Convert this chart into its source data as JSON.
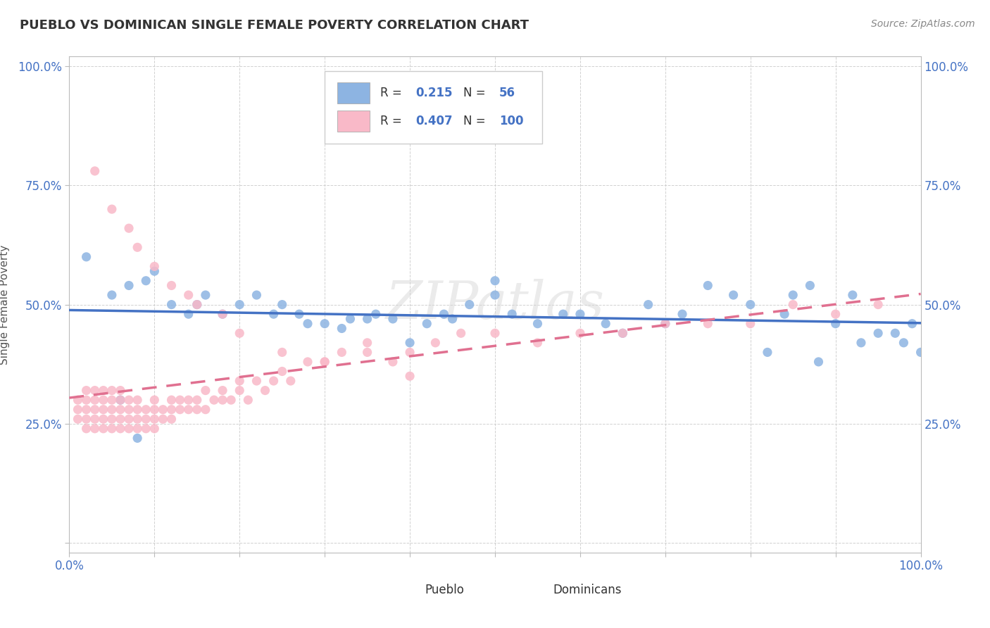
{
  "title": "PUEBLO VS DOMINICAN SINGLE FEMALE POVERTY CORRELATION CHART",
  "source_text": "Source: ZipAtlas.com",
  "ylabel": "Single Female Poverty",
  "pueblo_color": "#8db4e2",
  "dominican_color": "#f9b9c8",
  "pueblo_line_color": "#4472c4",
  "dominican_line_color": "#e07090",
  "pueblo_R": 0.215,
  "pueblo_N": 56,
  "dominican_R": 0.407,
  "dominican_N": 100,
  "background_color": "#ffffff",
  "grid_color": "#cccccc",
  "title_color": "#333333",
  "axis_label_color": "#4472c4",
  "pueblo_scatter_x": [
    0.02,
    0.05,
    0.07,
    0.09,
    0.1,
    0.12,
    0.14,
    0.15,
    0.16,
    0.18,
    0.2,
    0.22,
    0.24,
    0.25,
    0.27,
    0.28,
    0.3,
    0.32,
    0.33,
    0.35,
    0.36,
    0.38,
    0.4,
    0.42,
    0.44,
    0.45,
    0.47,
    0.5,
    0.52,
    0.55,
    0.58,
    0.6,
    0.63,
    0.65,
    0.68,
    0.7,
    0.72,
    0.75,
    0.78,
    0.8,
    0.82,
    0.84,
    0.85,
    0.87,
    0.88,
    0.9,
    0.92,
    0.93,
    0.95,
    0.97,
    0.98,
    0.99,
    1.0,
    0.06,
    0.08,
    0.5
  ],
  "pueblo_scatter_y": [
    0.6,
    0.52,
    0.54,
    0.55,
    0.57,
    0.5,
    0.48,
    0.5,
    0.52,
    0.48,
    0.5,
    0.52,
    0.48,
    0.5,
    0.48,
    0.46,
    0.46,
    0.45,
    0.47,
    0.47,
    0.48,
    0.47,
    0.42,
    0.46,
    0.48,
    0.47,
    0.5,
    0.52,
    0.48,
    0.46,
    0.48,
    0.48,
    0.46,
    0.44,
    0.5,
    0.46,
    0.48,
    0.54,
    0.52,
    0.5,
    0.4,
    0.48,
    0.52,
    0.54,
    0.38,
    0.46,
    0.52,
    0.42,
    0.44,
    0.44,
    0.42,
    0.46,
    0.4,
    0.3,
    0.22,
    0.55
  ],
  "dominican_scatter_x": [
    0.01,
    0.01,
    0.01,
    0.02,
    0.02,
    0.02,
    0.02,
    0.02,
    0.03,
    0.03,
    0.03,
    0.03,
    0.03,
    0.04,
    0.04,
    0.04,
    0.04,
    0.04,
    0.05,
    0.05,
    0.05,
    0.05,
    0.05,
    0.06,
    0.06,
    0.06,
    0.06,
    0.06,
    0.07,
    0.07,
    0.07,
    0.07,
    0.08,
    0.08,
    0.08,
    0.08,
    0.09,
    0.09,
    0.09,
    0.1,
    0.1,
    0.1,
    0.1,
    0.11,
    0.11,
    0.12,
    0.12,
    0.12,
    0.13,
    0.13,
    0.14,
    0.14,
    0.15,
    0.15,
    0.16,
    0.16,
    0.17,
    0.18,
    0.18,
    0.19,
    0.2,
    0.2,
    0.21,
    0.22,
    0.23,
    0.24,
    0.25,
    0.26,
    0.28,
    0.3,
    0.32,
    0.35,
    0.38,
    0.4,
    0.43,
    0.46,
    0.5,
    0.55,
    0.6,
    0.65,
    0.7,
    0.75,
    0.8,
    0.85,
    0.9,
    0.95,
    0.03,
    0.05,
    0.07,
    0.08,
    0.1,
    0.12,
    0.14,
    0.15,
    0.18,
    0.2,
    0.25,
    0.3,
    0.4,
    0.35
  ],
  "dominican_scatter_y": [
    0.26,
    0.28,
    0.3,
    0.24,
    0.26,
    0.28,
    0.3,
    0.32,
    0.24,
    0.26,
    0.28,
    0.3,
    0.32,
    0.24,
    0.26,
    0.28,
    0.3,
    0.32,
    0.24,
    0.26,
    0.28,
    0.3,
    0.32,
    0.24,
    0.26,
    0.28,
    0.3,
    0.32,
    0.24,
    0.26,
    0.28,
    0.3,
    0.24,
    0.26,
    0.28,
    0.3,
    0.24,
    0.26,
    0.28,
    0.24,
    0.26,
    0.28,
    0.3,
    0.26,
    0.28,
    0.26,
    0.28,
    0.3,
    0.28,
    0.3,
    0.28,
    0.3,
    0.28,
    0.3,
    0.28,
    0.32,
    0.3,
    0.3,
    0.32,
    0.3,
    0.32,
    0.34,
    0.3,
    0.34,
    0.32,
    0.34,
    0.36,
    0.34,
    0.38,
    0.38,
    0.4,
    0.42,
    0.38,
    0.4,
    0.42,
    0.44,
    0.44,
    0.42,
    0.44,
    0.44,
    0.46,
    0.46,
    0.46,
    0.5,
    0.48,
    0.5,
    0.78,
    0.7,
    0.66,
    0.62,
    0.58,
    0.54,
    0.52,
    0.5,
    0.48,
    0.44,
    0.4,
    0.38,
    0.35,
    0.4
  ],
  "xlim": [
    0.0,
    1.0
  ],
  "ylim": [
    -0.02,
    1.02
  ],
  "xticks": [
    0.0,
    0.1,
    0.2,
    0.3,
    0.4,
    0.5,
    0.6,
    0.7,
    0.8,
    0.9,
    1.0
  ],
  "yticks": [
    0.0,
    0.25,
    0.5,
    0.75,
    1.0
  ]
}
